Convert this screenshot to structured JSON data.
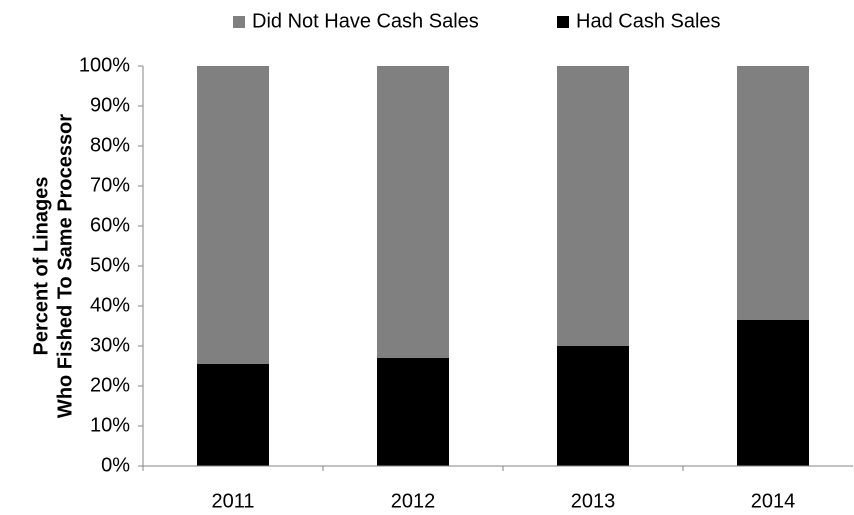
{
  "chart_data": {
    "type": "stacked_bar",
    "y_label": [
      "Percent of Linages",
      "Who Fished To Same Processor"
    ],
    "categories": [
      "2011",
      "2012",
      "2013",
      "2014"
    ],
    "series": [
      {
        "name": "Had Cash Sales",
        "color": "#000000",
        "values": [
          25.5,
          27,
          30,
          36.5
        ]
      },
      {
        "name": "Did Not Have Cash Sales",
        "color": "#808080",
        "values": [
          74.5,
          73,
          70,
          63.5
        ]
      }
    ],
    "ylim": [
      0,
      100
    ],
    "yticks": [
      {
        "value": 0,
        "label": "0%"
      },
      {
        "value": 10,
        "label": "10%"
      },
      {
        "value": 20,
        "label": "20%"
      },
      {
        "value": 30,
        "label": "30%"
      },
      {
        "value": 40,
        "label": "40%"
      },
      {
        "value": 50,
        "label": "50%"
      },
      {
        "value": 60,
        "label": "60%"
      },
      {
        "value": 70,
        "label": "70%"
      },
      {
        "value": 80,
        "label": "80%"
      },
      {
        "value": 90,
        "label": "90%"
      },
      {
        "value": 100,
        "label": "100%"
      }
    ],
    "legend": "top"
  }
}
